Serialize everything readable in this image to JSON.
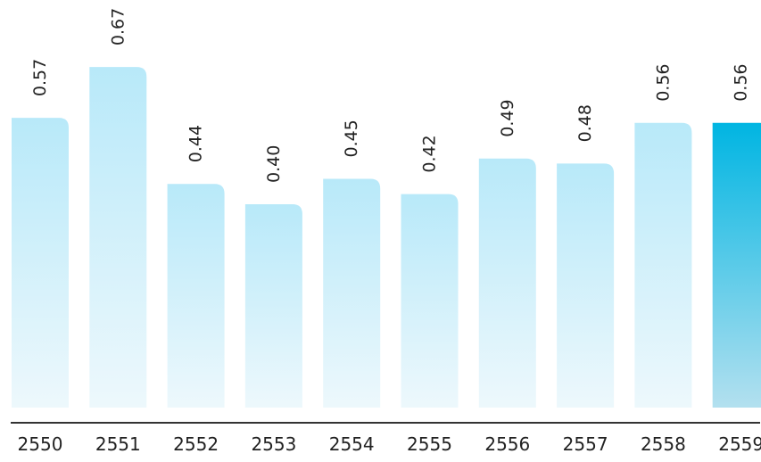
{
  "chart_data": {
    "type": "bar",
    "title": "",
    "xlabel": "",
    "ylabel": "",
    "categories": [
      "2550",
      "2551",
      "2552",
      "2553",
      "2554",
      "2555",
      "2556",
      "2557",
      "2558",
      "2559"
    ],
    "values": [
      0.57,
      0.67,
      0.44,
      0.4,
      0.45,
      0.42,
      0.49,
      0.48,
      0.56,
      0.56
    ],
    "value_labels": [
      "0.57",
      "0.67",
      "0.44",
      "0.40",
      "0.45",
      "0.42",
      "0.49",
      "0.48",
      "0.56",
      "0.56"
    ],
    "highlight_index": 9,
    "colors": {
      "bar_top": "#b8e9f9",
      "bar_bottom": "#edf8fc",
      "highlight_top": "#00b5e2",
      "highlight_bottom": "#b3e0ef",
      "axis_line": "#333333",
      "text": "#222222"
    }
  }
}
